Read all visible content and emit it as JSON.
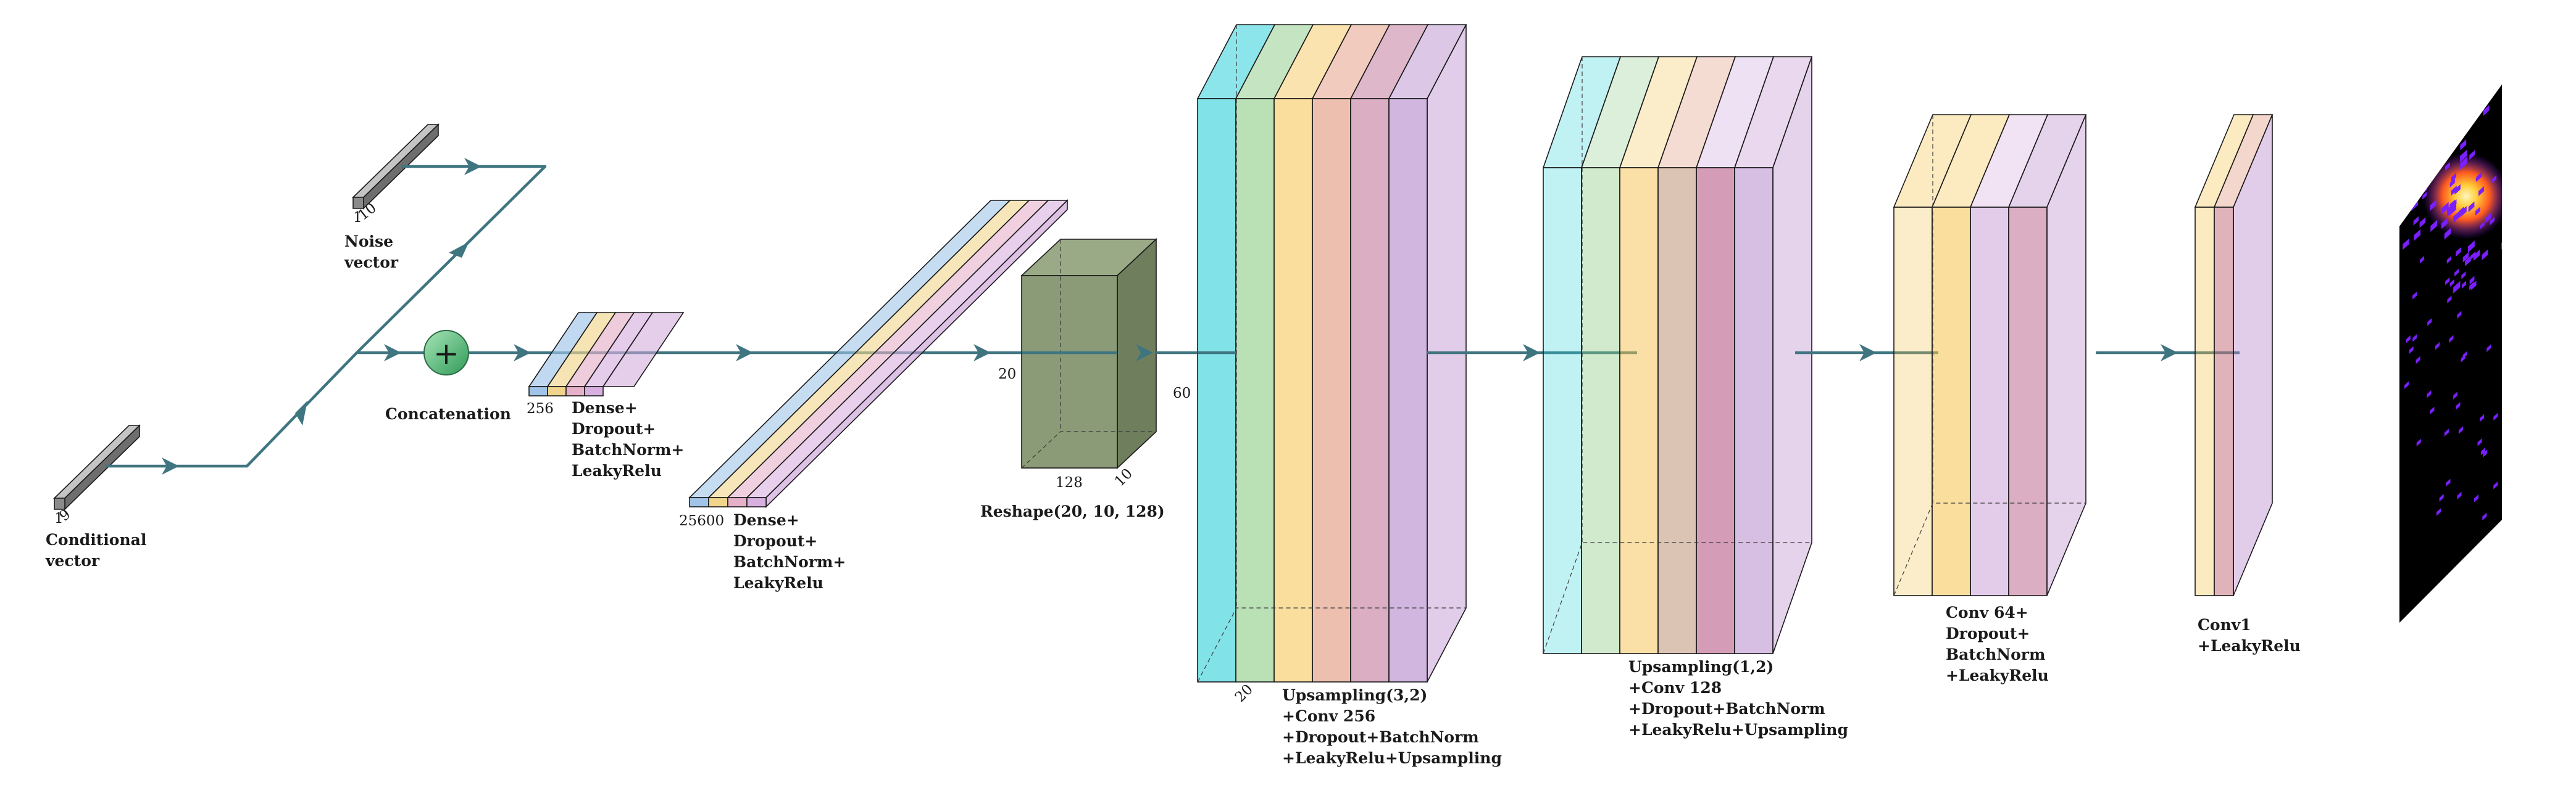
{
  "colors": {
    "flow": "#3f7580",
    "cyan": "#2dcfd8",
    "green": "#8ccb85",
    "yellow": "#f6c24e",
    "salmon": "#df8b6e",
    "mauve": "#b04b7a",
    "purple": "#9a5fb8",
    "lilac": "#b57fc7",
    "blue_light": "#9fc4e8",
    "olive": "#8b9b78",
    "gray_bar": "#888888",
    "concat_node": "#5fbf7c"
  },
  "inputs": {
    "conditional": {
      "dim_a": "1",
      "dim_b": "9",
      "label_line1": "Conditional",
      "label_line2": "vector"
    },
    "noise": {
      "dim_a": "1",
      "dim_b": "10",
      "label_line1": "Noise",
      "label_line2": "vector"
    }
  },
  "concat": {
    "symbol": "+",
    "label": "Concatenation"
  },
  "dense1": {
    "dim": "256",
    "label": [
      "Dense+",
      "Dropout+",
      "BatchNorm+",
      "LeakyRelu"
    ]
  },
  "dense2": {
    "dim": "25600",
    "label": [
      "Dense+",
      "Dropout+",
      "BatchNorm+",
      "LeakyRelu"
    ]
  },
  "reshape": {
    "dim_h": "20",
    "dim_w": "128",
    "dim_d": "10",
    "label": "Reshape(20, 10, 128)"
  },
  "up1": {
    "dim_h": "60",
    "dim_d": "20",
    "label": [
      "Upsampling(3,2)",
      "+Conv 256",
      "+Dropout+BatchNorm",
      "+LeakyRelu+Upsampling"
    ]
  },
  "up2": {
    "label": [
      "Upsampling(1,2)",
      "+Conv 128",
      "+Dropout+BatchNorm",
      "+LeakyRelu+Upsampling"
    ]
  },
  "conv64": {
    "label": [
      "Conv 64+",
      "Dropout+",
      "BatchNorm",
      "+LeakyRelu"
    ]
  },
  "conv1": {
    "label": [
      "Conv1",
      "+LeakyRelu"
    ]
  },
  "output": {
    "icon": "generated-image-icon",
    "background": "#000000",
    "hotspot": "#ffd24a",
    "pixels": "#7a1fff"
  }
}
